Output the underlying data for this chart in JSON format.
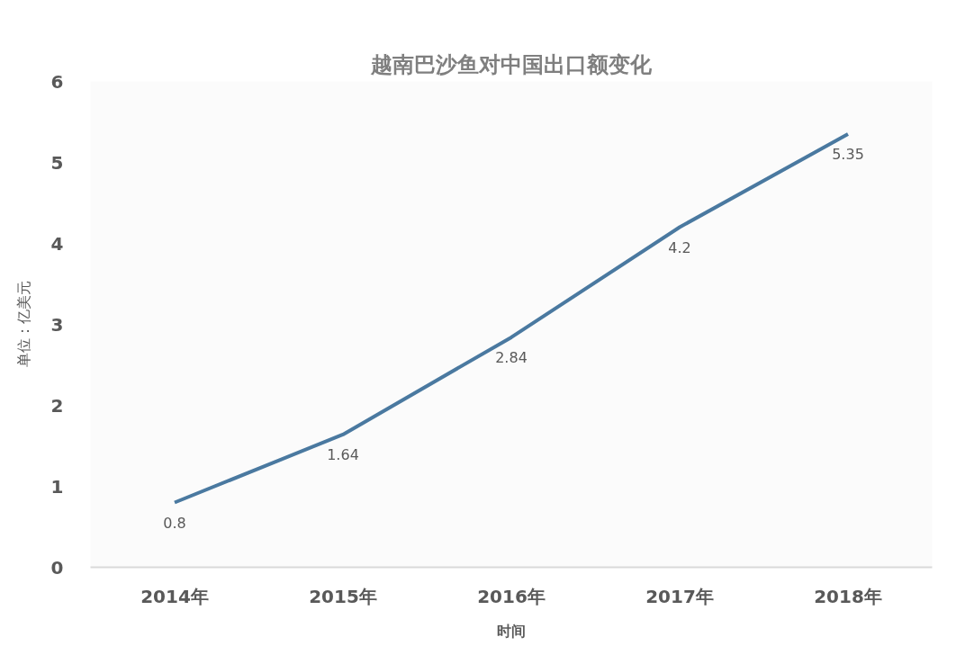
{
  "chart_data": {
    "type": "line",
    "title": "越南巴沙鱼对中国出口额变化",
    "xlabel": "时间",
    "ylabel": "单位：亿美元",
    "categories": [
      "2014年",
      "2015年",
      "2016年",
      "2017年",
      "2018年"
    ],
    "series": [
      {
        "color": "#4a79a0",
        "values": [
          0.8,
          1.64,
          2.84,
          4.2,
          5.35
        ]
      }
    ],
    "ylim": [
      0,
      6
    ],
    "yticks": [
      0,
      1,
      2,
      3,
      4,
      5,
      6
    ],
    "data_labels": true
  }
}
